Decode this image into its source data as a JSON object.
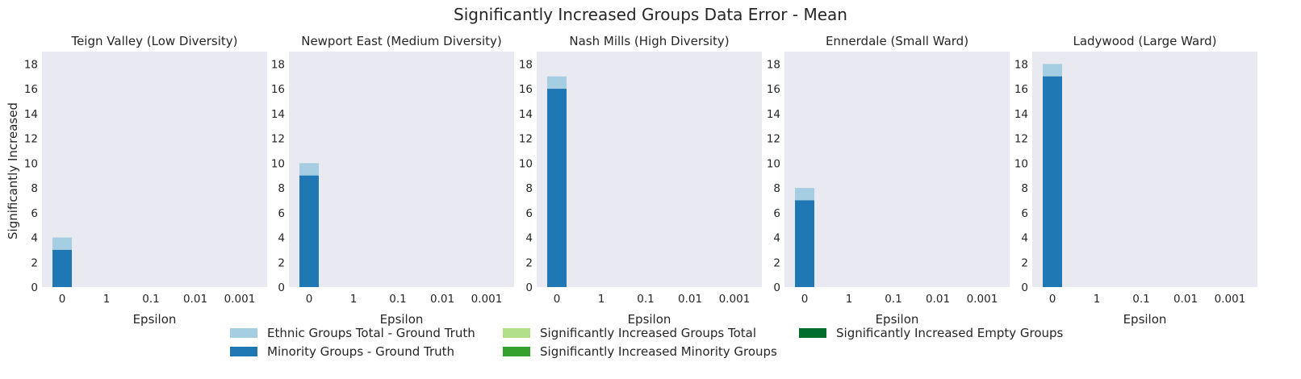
{
  "figure": {
    "title": "Significantly Increased Groups Data Error - Mean"
  },
  "chart_data": {
    "type": "bar",
    "stacking": "overlay",
    "ylabel": "Significantly Increased",
    "xlabel": "Epsilon",
    "categories": [
      "0",
      "1",
      "0.1",
      "0.01",
      "0.001"
    ],
    "ylim": [
      0,
      19
    ],
    "yticks": [
      0,
      2,
      4,
      6,
      8,
      10,
      12,
      14,
      16,
      18
    ],
    "grid": false,
    "legend_position": "bottom-center",
    "colors": {
      "plot_background": "#e9e9f1",
      "ethnic_total": "#a6cee3",
      "minority": "#1f78b4",
      "sig_total": "#b2df8a",
      "sig_minority": "#33a02c",
      "sig_empty": "#006d2c"
    },
    "legend": [
      {
        "key": "ethnic_total",
        "label": "Ethnic Groups Total - Ground Truth"
      },
      {
        "key": "minority",
        "label": "Minority Groups - Ground Truth"
      },
      {
        "key": "sig_total",
        "label": "Significantly Increased Groups Total"
      },
      {
        "key": "sig_minority",
        "label": "Significantly Increased Minority Groups"
      },
      {
        "key": "sig_empty",
        "label": "Significantly Increased Empty Groups"
      }
    ],
    "panels": [
      {
        "title": "Teign Valley (Low Diversity)",
        "series": [
          {
            "key": "ethnic_total",
            "values": [
              4,
              0,
              0,
              0,
              0
            ]
          },
          {
            "key": "minority",
            "values": [
              3,
              0,
              0,
              0,
              0
            ]
          },
          {
            "key": "sig_total",
            "values": [
              0,
              0,
              0,
              0,
              0
            ]
          },
          {
            "key": "sig_minority",
            "values": [
              0,
              0,
              0,
              0,
              0
            ]
          },
          {
            "key": "sig_empty",
            "values": [
              0,
              0,
              0,
              0,
              0
            ]
          }
        ]
      },
      {
        "title": "Newport East (Medium Diversity)",
        "series": [
          {
            "key": "ethnic_total",
            "values": [
              10,
              0,
              0,
              0,
              0
            ]
          },
          {
            "key": "minority",
            "values": [
              9,
              0,
              0,
              0,
              0
            ]
          },
          {
            "key": "sig_total",
            "values": [
              0,
              0,
              0,
              0,
              0
            ]
          },
          {
            "key": "sig_minority",
            "values": [
              0,
              0,
              0,
              0,
              0
            ]
          },
          {
            "key": "sig_empty",
            "values": [
              0,
              0,
              0,
              0,
              0
            ]
          }
        ]
      },
      {
        "title": "Nash Mills (High Diversity)",
        "series": [
          {
            "key": "ethnic_total",
            "values": [
              17,
              0,
              0,
              0,
              0
            ]
          },
          {
            "key": "minority",
            "values": [
              16,
              0,
              0,
              0,
              0
            ]
          },
          {
            "key": "sig_total",
            "values": [
              0,
              0,
              0,
              0,
              0
            ]
          },
          {
            "key": "sig_minority",
            "values": [
              0,
              0,
              0,
              0,
              0
            ]
          },
          {
            "key": "sig_empty",
            "values": [
              0,
              0,
              0,
              0,
              0
            ]
          }
        ]
      },
      {
        "title": "Ennerdale (Small Ward)",
        "series": [
          {
            "key": "ethnic_total",
            "values": [
              8,
              0,
              0,
              0,
              0
            ]
          },
          {
            "key": "minority",
            "values": [
              7,
              0,
              0,
              0,
              0
            ]
          },
          {
            "key": "sig_total",
            "values": [
              0,
              0,
              0,
              0,
              0
            ]
          },
          {
            "key": "sig_minority",
            "values": [
              0,
              0,
              0,
              0,
              0
            ]
          },
          {
            "key": "sig_empty",
            "values": [
              0,
              0,
              0,
              0,
              0
            ]
          }
        ]
      },
      {
        "title": "Ladywood (Large Ward)",
        "series": [
          {
            "key": "ethnic_total",
            "values": [
              18,
              0,
              0,
              0,
              0
            ]
          },
          {
            "key": "minority",
            "values": [
              17,
              0,
              0,
              0,
              0
            ]
          },
          {
            "key": "sig_total",
            "values": [
              0,
              0,
              0,
              0,
              0
            ]
          },
          {
            "key": "sig_minority",
            "values": [
              0,
              0,
              0,
              0,
              0
            ]
          },
          {
            "key": "sig_empty",
            "values": [
              0,
              0,
              0,
              0,
              0
            ]
          }
        ]
      }
    ]
  }
}
